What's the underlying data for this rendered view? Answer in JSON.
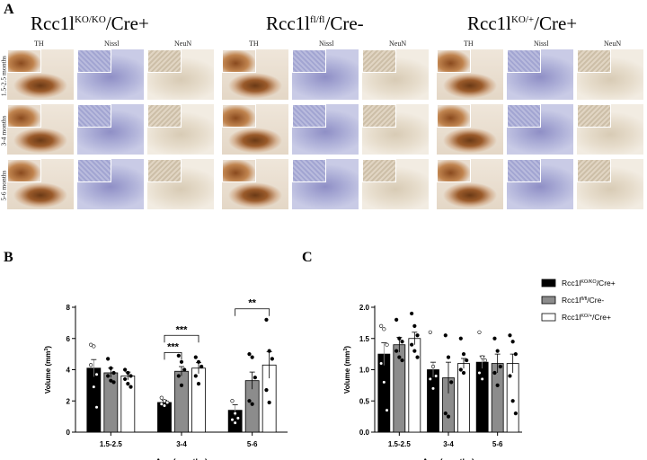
{
  "panel_letters": [
    "A",
    "B",
    "C"
  ],
  "groups": [
    {
      "base": "Rcc1l",
      "sup": "KO/KO",
      "tail": "/Cre+"
    },
    {
      "base": "Rcc1l",
      "sup": "fl/fl",
      "tail": "/Cre-"
    },
    {
      "base": "Rcc1l",
      "sup": "KO/+",
      "tail": "/Cre+"
    }
  ],
  "stains": [
    "TH",
    "Nissl",
    "NeuN"
  ],
  "age_rows": [
    "1.5-2.5 months",
    "3-4 months",
    "5-6 months"
  ],
  "colors": {
    "ko": "#000000",
    "flox": "#8c8c8c",
    "het": "#ffffff"
  },
  "chart_data": [
    {
      "type": "bar",
      "panel": "B",
      "categories": [
        "1.5-2.5",
        "3-4",
        "5-6"
      ],
      "series": [
        {
          "name": "Rcc1l/KO/KO/Cre+",
          "values": [
            4.1,
            1.9,
            1.4
          ],
          "errors": [
            0.55,
            0.15,
            0.35
          ],
          "points": [
            [
              5.6,
              5.5,
              3.7,
              4.3,
              2.9,
              1.6
            ],
            [
              2.2,
              2.0,
              1.9,
              1.8,
              1.7
            ],
            [
              2.0,
              1.2,
              0.9,
              0.8,
              0.6
            ]
          ]
        },
        {
          "name": "Rcc1l/fl/fl/Cre-",
          "values": [
            3.8,
            3.9,
            3.3
          ],
          "errors": [
            0.3,
            0.3,
            0.55
          ],
          "points": [
            [
              4.7,
              4.1,
              3.8,
              3.6,
              3.3,
              3.2
            ],
            [
              4.9,
              4.5,
              4.0,
              3.6,
              3.0
            ],
            [
              5.0,
              4.8,
              3.5,
              2.0,
              1.8
            ]
          ]
        },
        {
          "name": "Rcc1l/KO/+/Cre+",
          "values": [
            3.6,
            4.1,
            4.3
          ],
          "errors": [
            0.25,
            0.35,
            0.85
          ],
          "points": [
            [
              4.0,
              3.8,
              3.6,
              3.4,
              3.1,
              2.9
            ],
            [
              4.8,
              4.5,
              4.2,
              3.6,
              3.1
            ],
            [
              7.2,
              5.2,
              4.7,
              2.7,
              1.9
            ]
          ]
        }
      ],
      "xlabel": "Age (months)",
      "ylabel": "Volume (mm3)",
      "ylim": [
        0,
        8
      ],
      "yticks": [
        0,
        2,
        4,
        6,
        8
      ],
      "significance": [
        {
          "label": "***",
          "between": [
            0,
            1
          ],
          "group": 1,
          "y": 5.1
        },
        {
          "label": "***",
          "between": [
            0,
            2
          ],
          "group": 1,
          "y": 6.2
        },
        {
          "label": "**",
          "between": [
            0,
            2
          ],
          "group": 2,
          "y": 7.9
        }
      ]
    },
    {
      "type": "bar",
      "panel": "C",
      "categories": [
        "1.5-2.5",
        "3-4",
        "5-6"
      ],
      "series": [
        {
          "name": "Rcc1l/KO/KO/Cre+",
          "values": [
            1.25,
            1.0,
            1.12
          ],
          "errors": [
            0.18,
            0.12,
            0.1
          ],
          "points": [
            [
              1.7,
              1.65,
              1.4,
              1.1,
              0.8,
              0.35
            ],
            [
              1.6,
              1.05,
              0.9,
              0.85,
              0.7
            ],
            [
              1.6,
              1.2,
              1.15,
              0.95,
              0.85
            ]
          ]
        },
        {
          "name": "Rcc1l/fl/fl/Cre-",
          "values": [
            1.4,
            0.87,
            1.1
          ],
          "errors": [
            0.12,
            0.25,
            0.15
          ],
          "points": [
            [
              1.8,
              1.5,
              1.45,
              1.3,
              1.2,
              1.15
            ],
            [
              1.55,
              1.2,
              0.8,
              0.3,
              0.25
            ],
            [
              1.5,
              1.3,
              1.05,
              0.95,
              0.75
            ]
          ]
        },
        {
          "name": "Rcc1l/KO/+/Cre+",
          "values": [
            1.5,
            1.1,
            1.1
          ],
          "errors": [
            0.1,
            0.08,
            0.15
          ],
          "points": [
            [
              1.9,
              1.7,
              1.55,
              1.4,
              1.3,
              1.2
            ],
            [
              1.5,
              1.25,
              1.15,
              1.0,
              0.95
            ],
            [
              1.55,
              1.45,
              1.25,
              0.9,
              0.5,
              0.3
            ]
          ]
        }
      ],
      "xlabel": "Age (months)",
      "ylabel": "Volume (mm3)",
      "ylim": [
        0,
        2.0
      ],
      "yticks": [
        "0.0",
        "0.5",
        "1.0",
        "1.5",
        "2.0"
      ],
      "legend": [
        {
          "base": "Rcc1l",
          "sup": "KO/KO",
          "tail": "/Cre+"
        },
        {
          "base": "Rcc1l",
          "sup": "fl/fl",
          "tail": "/Cre-"
        },
        {
          "base": "Rcc1l",
          "sup": "KO/+",
          "tail": "/Cre+"
        }
      ]
    }
  ]
}
